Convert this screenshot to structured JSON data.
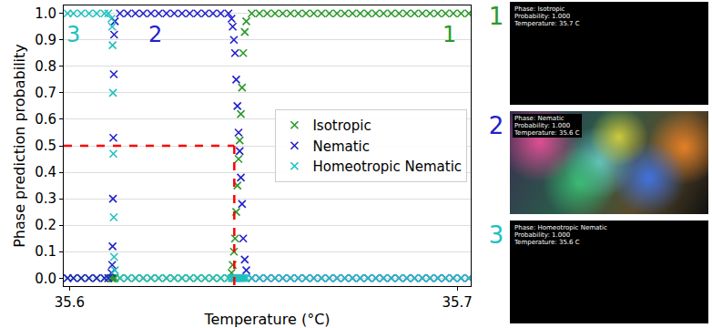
{
  "chart_data": {
    "type": "scatter",
    "x_label": "Temperature (°C)",
    "y_label": "Phase prediction probability",
    "x": [
      35.5995,
      35.601,
      35.603,
      35.605,
      35.607,
      35.609,
      35.61,
      35.6108,
      35.611,
      35.6111,
      35.6112,
      35.6113,
      35.6114,
      35.6115,
      35.6117,
      35.613,
      35.615,
      35.617,
      35.619,
      35.621,
      35.623,
      35.625,
      35.627,
      35.629,
      35.631,
      35.633,
      35.635,
      35.637,
      35.639,
      35.641,
      35.6418,
      35.6421,
      35.6424,
      35.6427,
      35.643,
      35.6433,
      35.6436,
      35.6439,
      35.6442,
      35.6445,
      35.6448,
      35.6452,
      35.6456,
      35.647,
      35.649,
      35.651,
      35.653,
      35.655,
      35.657,
      35.659,
      35.661,
      35.663,
      35.665,
      35.667,
      35.669,
      35.671,
      35.673,
      35.675,
      35.677,
      35.679,
      35.681,
      35.683,
      35.685,
      35.687,
      35.689,
      35.691,
      35.693,
      35.695,
      35.697,
      35.699,
      35.701,
      35.703
    ],
    "series": [
      {
        "name": "Isotropic",
        "color": "#2a9a2a",
        "marker": "x",
        "values": [
          0,
          0,
          0,
          0,
          0,
          0,
          0,
          0,
          0,
          0,
          0,
          0,
          0,
          0,
          0,
          0,
          0,
          0,
          0,
          0,
          0,
          0,
          0,
          0,
          0,
          0,
          0,
          0,
          0,
          0,
          0.02,
          0.05,
          0.1,
          0.15,
          0.25,
          0.35,
          0.45,
          0.52,
          0.62,
          0.72,
          0.85,
          0.93,
          0.97,
          1,
          1,
          1,
          1,
          1,
          1,
          1,
          1,
          1,
          1,
          1,
          1,
          1,
          1,
          1,
          1,
          1,
          1,
          1,
          1,
          1,
          1,
          1,
          1,
          1,
          1,
          1,
          1,
          1
        ]
      },
      {
        "name": "Nematic",
        "color": "#2222cc",
        "marker": "x",
        "values": [
          0,
          0,
          0,
          0,
          0,
          0,
          0,
          0.02,
          0.05,
          0.12,
          0.3,
          0.53,
          0.77,
          0.92,
          0.97,
          1,
          1,
          1,
          1,
          1,
          1,
          1,
          1,
          1,
          1,
          1,
          1,
          1,
          1,
          1,
          0.98,
          0.95,
          0.9,
          0.85,
          0.75,
          0.65,
          0.55,
          0.48,
          0.38,
          0.28,
          0.15,
          0.07,
          0.03,
          0,
          0,
          0,
          0,
          0,
          0,
          0,
          0,
          0,
          0,
          0,
          0,
          0,
          0,
          0,
          0,
          0,
          0,
          0,
          0,
          0,
          0,
          0,
          0,
          0,
          0,
          0,
          0,
          0
        ]
      },
      {
        "name": "Homeotropic Nematic",
        "color": "#20c0c0",
        "marker": "x",
        "values": [
          1,
          1,
          1,
          1,
          1,
          1,
          1,
          0.98,
          0.95,
          0.88,
          0.7,
          0.47,
          0.23,
          0.08,
          0.03,
          0,
          0,
          0,
          0,
          0,
          0,
          0,
          0,
          0,
          0,
          0,
          0,
          0,
          0,
          0,
          0,
          0,
          0,
          0,
          0,
          0,
          0,
          0,
          0,
          0,
          0,
          0,
          0,
          0,
          0,
          0,
          0,
          0,
          0,
          0,
          0,
          0,
          0,
          0,
          0,
          0,
          0,
          0,
          0,
          0,
          0,
          0,
          0,
          0,
          0,
          0,
          0,
          0,
          0,
          0,
          0,
          0
        ]
      }
    ],
    "xlim": [
      35.5985,
      35.7035
    ],
    "xticks": [
      35.6,
      35.7
    ],
    "ylim": [
      -0.03,
      1.03
    ],
    "yticks": [
      {
        "value": 0,
        "label": "0.0"
      },
      {
        "value": 0.1,
        "label": "0.1"
      },
      {
        "value": 0.2,
        "label": "0.2"
      },
      {
        "value": 0.3,
        "label": "0.3"
      },
      {
        "value": 0.4,
        "label": "0.4"
      },
      {
        "value": 0.5,
        "label": "0.5"
      },
      {
        "value": 0.6,
        "label": "0.6"
      },
      {
        "value": 0.7,
        "label": "0.7"
      },
      {
        "value": 0.8,
        "label": "0.8"
      },
      {
        "value": 0.9,
        "label": "0.9"
      },
      {
        "value": 1,
        "label": "1.0"
      }
    ],
    "grid": "y",
    "legend": "right",
    "threshold": {
      "x": 35.6425,
      "y": 0.5,
      "color": "red",
      "line_style": "dashed"
    },
    "phase_labels": [
      {
        "text": "3",
        "x": 35.601,
        "y": 0.975,
        "color": "#20c0c0"
      },
      {
        "text": "2",
        "x": 35.622,
        "y": 0.975,
        "color": "#2222cc"
      },
      {
        "text": "1",
        "x": 35.698,
        "y": 0.975,
        "color": "#2a9a2a"
      }
    ]
  },
  "panels": [
    {
      "label": "1",
      "color": "#2a9a2a",
      "lines": [
        "Phase: Isotropic",
        "Probability: 1.000",
        "Temperature: 35.7 C"
      ]
    },
    {
      "label": "2",
      "color": "#2222cc",
      "lines": [
        "Phase: Nematic",
        "Probability: 1.000",
        "Temperature: 35.6 C"
      ]
    },
    {
      "label": "3",
      "color": "#20c0c0",
      "lines": [
        "Phase: Homeotropic Nematic",
        "Probability: 1.000",
        "Temperature: 35.6 C"
      ]
    }
  ]
}
